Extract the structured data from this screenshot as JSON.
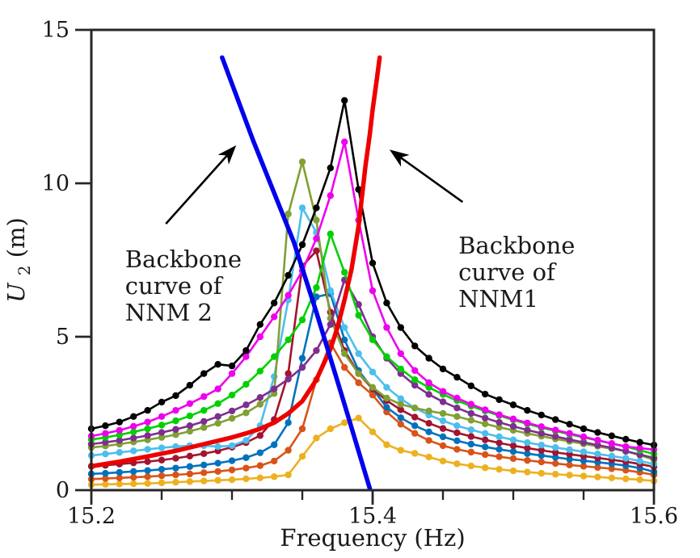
{
  "figure": {
    "background": "#ffffff",
    "axes_color": "#262626",
    "text_color": "#1a1a1a"
  },
  "chart_data": {
    "type": "line",
    "title": "",
    "xlabel": "Frequency (Hz)",
    "ylabel_parts": [
      "U",
      "2",
      " (m)"
    ],
    "xlim": [
      15.2,
      15.6
    ],
    "ylim": [
      0,
      15
    ],
    "grid": false,
    "legend": "none",
    "x_major_ticks": [
      15.2,
      15.4,
      15.6
    ],
    "x_major_tick_labels": [
      "15.2",
      "15.4",
      "15.6"
    ],
    "x_minor_ticks": [
      15.25,
      15.3,
      15.35,
      15.45,
      15.5,
      15.55
    ],
    "y_major_ticks": [
      0,
      5,
      10,
      15
    ],
    "y_major_tick_labels": [
      "0",
      "5",
      "10",
      "15"
    ],
    "x": [
      15.2,
      15.21,
      15.22,
      15.23,
      15.24,
      15.25,
      15.26,
      15.27,
      15.28,
      15.29,
      15.3,
      15.31,
      15.32,
      15.33,
      15.34,
      15.35,
      15.36,
      15.37,
      15.38,
      15.39,
      15.4,
      15.41,
      15.42,
      15.43,
      15.44,
      15.45,
      15.46,
      15.47,
      15.48,
      15.49,
      15.5,
      15.51,
      15.52,
      15.53,
      15.54,
      15.55,
      15.56,
      15.57,
      15.58,
      15.59,
      15.6
    ],
    "series": [
      {
        "name": "frf-gold",
        "color": "#EDB120",
        "marker": "circle",
        "values": [
          0.18,
          0.19,
          0.2,
          0.21,
          0.22,
          0.24,
          0.26,
          0.28,
          0.3,
          0.32,
          0.34,
          0.37,
          0.4,
          0.44,
          0.5,
          1.1,
          1.7,
          2.0,
          2.2,
          2.35,
          1.9,
          1.48,
          1.3,
          1.2,
          1.08,
          0.95,
          0.86,
          0.79,
          0.73,
          0.68,
          0.63,
          0.59,
          0.55,
          0.52,
          0.49,
          0.46,
          0.43,
          0.4,
          0.37,
          0.34,
          0.3
        ]
      },
      {
        "name": "frf-darkorange",
        "color": "#D95319",
        "marker": "circle",
        "values": [
          0.36,
          0.38,
          0.4,
          0.42,
          0.44,
          0.47,
          0.5,
          0.53,
          0.57,
          0.61,
          0.66,
          0.72,
          0.8,
          0.95,
          1.3,
          2.0,
          3.6,
          4.8,
          4.0,
          3.5,
          3.1,
          2.55,
          2.15,
          1.85,
          1.62,
          1.45,
          1.33,
          1.24,
          1.16,
          1.09,
          1.03,
          0.97,
          0.92,
          0.87,
          0.82,
          0.78,
          0.74,
          0.7,
          0.65,
          0.58,
          0.5
        ]
      },
      {
        "name": "frf-steelblue",
        "color": "#0072BD",
        "marker": "circle",
        "values": [
          0.53,
          0.55,
          0.58,
          0.61,
          0.64,
          0.68,
          0.72,
          0.77,
          0.82,
          0.88,
          0.96,
          1.06,
          1.22,
          1.48,
          2.2,
          4.3,
          6.3,
          6.4,
          4.9,
          3.9,
          3.3,
          2.7,
          2.36,
          2.1,
          1.9,
          1.74,
          1.61,
          1.5,
          1.41,
          1.33,
          1.26,
          1.19,
          1.13,
          1.07,
          1.01,
          0.96,
          0.91,
          0.86,
          0.8,
          0.72,
          0.6
        ]
      },
      {
        "name": "frf-maroon",
        "color": "#A2142F",
        "marker": "circle",
        "values": [
          0.78,
          0.81,
          0.85,
          0.89,
          0.93,
          0.98,
          1.04,
          1.11,
          1.19,
          1.28,
          1.4,
          1.55,
          1.78,
          2.3,
          3.8,
          7.3,
          7.8,
          5.8,
          4.55,
          3.8,
          3.3,
          2.92,
          2.62,
          2.38,
          2.18,
          2.01,
          1.87,
          1.75,
          1.64,
          1.54,
          1.45,
          1.37,
          1.3,
          1.23,
          1.17,
          1.11,
          1.05,
          0.99,
          0.93,
          0.85,
          0.76
        ]
      },
      {
        "name": "frf-skyblue",
        "color": "#4DBEEE",
        "marker": "circle",
        "values": [
          1.13,
          1.18,
          1.23,
          1.28,
          1.33,
          1.38,
          1.42,
          1.45,
          1.45,
          1.42,
          1.45,
          1.62,
          2.1,
          3.7,
          6.2,
          9.2,
          8.4,
          6.5,
          5.3,
          4.45,
          3.85,
          3.35,
          2.98,
          2.68,
          2.45,
          2.26,
          2.1,
          1.97,
          1.85,
          1.74,
          1.64,
          1.55,
          1.47,
          1.39,
          1.32,
          1.25,
          1.18,
          1.11,
          1.04,
          0.95,
          0.85
        ]
      },
      {
        "name": "frf-olive",
        "color": "#80A033",
        "marker": "circle",
        "values": [
          1.39,
          1.44,
          1.5,
          1.57,
          1.64,
          1.72,
          1.81,
          1.92,
          2.04,
          2.18,
          2.34,
          2.52,
          2.8,
          3.15,
          9.0,
          10.7,
          8.8,
          5.6,
          4.45,
          3.8,
          3.35,
          3.0,
          2.8,
          2.68,
          2.58,
          2.5,
          2.4,
          2.28,
          2.16,
          2.05,
          1.95,
          1.85,
          1.76,
          1.67,
          1.59,
          1.51,
          1.43,
          1.35,
          1.27,
          1.14,
          0.99
        ]
      },
      {
        "name": "frf-purple",
        "color": "#7E2F8E",
        "marker": "circle",
        "values": [
          1.5,
          1.56,
          1.62,
          1.7,
          1.78,
          1.88,
          1.98,
          2.1,
          2.24,
          2.4,
          2.58,
          2.78,
          3.02,
          3.3,
          3.62,
          4.0,
          4.55,
          5.4,
          6.85,
          6.05,
          5.0,
          4.3,
          3.8,
          3.42,
          3.12,
          2.88,
          2.68,
          2.5,
          2.35,
          2.21,
          2.08,
          1.96,
          1.85,
          1.75,
          1.65,
          1.56,
          1.47,
          1.38,
          1.27,
          1.16,
          1.05
        ]
      },
      {
        "name": "frf-green",
        "color": "#00D000",
        "marker": "circle",
        "values": [
          1.65,
          1.72,
          1.8,
          1.9,
          2.0,
          2.12,
          2.26,
          2.42,
          2.6,
          2.82,
          3.1,
          3.45,
          3.88,
          4.35,
          4.9,
          5.55,
          6.6,
          8.35,
          7.1,
          5.7,
          4.9,
          4.35,
          3.95,
          3.6,
          3.35,
          3.12,
          2.92,
          2.74,
          2.58,
          2.43,
          2.29,
          2.16,
          2.04,
          1.93,
          1.82,
          1.72,
          1.62,
          1.52,
          1.42,
          1.3,
          1.18
        ]
      },
      {
        "name": "frf-magenta",
        "color": "#EE00EE",
        "marker": "circle",
        "values": [
          1.76,
          1.85,
          1.95,
          2.08,
          2.22,
          2.4,
          2.6,
          2.82,
          3.05,
          3.3,
          3.8,
          4.35,
          5.0,
          5.65,
          6.35,
          7.15,
          8.2,
          9.6,
          11.35,
          8.8,
          6.5,
          5.3,
          4.45,
          3.9,
          3.5,
          3.22,
          3.0,
          2.8,
          2.62,
          2.46,
          2.32,
          2.19,
          2.07,
          1.96,
          1.85,
          1.74,
          1.63,
          1.52,
          1.42,
          1.37,
          1.32
        ]
      },
      {
        "name": "frf-black",
        "color": "#000000",
        "marker": "circle",
        "values": [
          2.0,
          2.1,
          2.22,
          2.4,
          2.6,
          2.87,
          3.08,
          3.42,
          3.8,
          4.1,
          4.05,
          4.55,
          5.4,
          6.1,
          7.0,
          8.0,
          9.2,
          10.5,
          12.7,
          9.8,
          7.4,
          6.1,
          5.3,
          4.7,
          4.3,
          3.95,
          3.68,
          3.4,
          3.13,
          2.95,
          2.78,
          2.6,
          2.45,
          2.3,
          2.15,
          2.0,
          1.88,
          1.77,
          1.66,
          1.56,
          1.47
        ]
      }
    ],
    "backbones": [
      {
        "name": "backbone-nnm1",
        "label": "Backbone curve of NNM1",
        "color": "#EE0000",
        "points": [
          [
            15.2,
            0.78
          ],
          [
            15.22,
            0.93
          ],
          [
            15.24,
            1.1
          ],
          [
            15.26,
            1.28
          ],
          [
            15.28,
            1.5
          ],
          [
            15.3,
            1.72
          ],
          [
            15.31,
            1.85
          ],
          [
            15.32,
            2.0
          ],
          [
            15.33,
            2.2
          ],
          [
            15.34,
            2.5
          ],
          [
            15.35,
            2.9
          ],
          [
            15.36,
            3.6
          ],
          [
            15.37,
            4.6
          ],
          [
            15.375,
            5.3
          ],
          [
            15.38,
            6.2
          ],
          [
            15.385,
            7.2
          ],
          [
            15.39,
            8.6
          ],
          [
            15.395,
            10.6
          ],
          [
            15.398,
            11.6
          ],
          [
            15.4,
            12.4
          ],
          [
            15.403,
            13.4
          ],
          [
            15.405,
            14.1
          ]
        ]
      },
      {
        "name": "backbone-nnm2",
        "label": "Backbone curve of NNM 2",
        "color": "#0000EE",
        "points": [
          [
            15.293,
            14.1
          ],
          [
            15.315,
            11.4
          ],
          [
            15.344,
            8.08
          ],
          [
            15.36,
            5.8
          ],
          [
            15.379,
            2.95
          ],
          [
            15.398,
            0.05
          ]
        ]
      }
    ],
    "annotations": [
      {
        "id": "nnm2-label",
        "lines": [
          "Backbone",
          "curve of",
          "NNM 2"
        ],
        "text_pos": [
          15.224,
          7.95
        ],
        "arrow_tail": [
          15.253,
          8.68
        ],
        "arrow_head": [
          15.303,
          11.24
        ]
      },
      {
        "id": "nnm1-label",
        "lines": [
          "Backbone",
          "curve of",
          "NNM1"
        ],
        "text_pos": [
          15.461,
          8.39
        ],
        "arrow_tail": [
          15.464,
          9.39
        ],
        "arrow_head": [
          15.412,
          11.1
        ]
      }
    ]
  }
}
